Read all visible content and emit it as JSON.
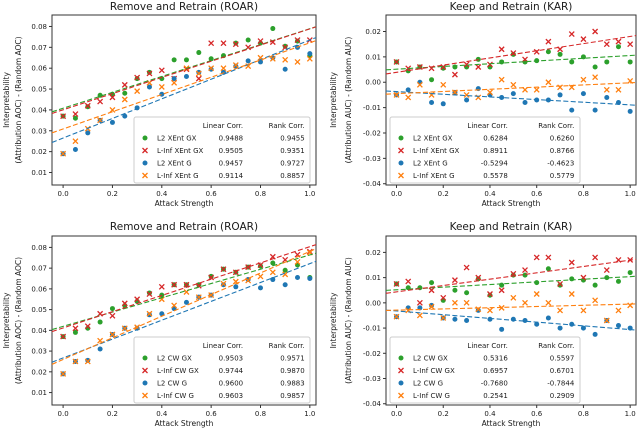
{
  "figure": {
    "background": "#ffffff",
    "text_color": "#1a1a1a",
    "frame_color": "#333333",
    "legend_border_color": "#cccccc"
  },
  "chart_data": [
    {
      "type": "scatter",
      "slug": "roar-xent",
      "grid": [
        0,
        0
      ],
      "title": "Remove and Retrain (ROAR)",
      "xlabel": "Attack Strength",
      "ylabel_outer": "Interpretability",
      "ylabel_inner": "(Attribution AOC) - (Random AOC)",
      "xlim": [
        -0.045,
        1.025
      ],
      "ylim": [
        0.004,
        0.0855
      ],
      "xticks": [
        0.0,
        0.2,
        0.4,
        0.6,
        0.8,
        1.0
      ],
      "xtick_labels": [
        "0.0",
        "0.2",
        "0.4",
        "0.6",
        "0.8",
        "1.0"
      ],
      "yticks": [
        0.01,
        0.02,
        0.03,
        0.04,
        0.05,
        0.06,
        0.07,
        0.08
      ],
      "ytick_labels": [
        "0.01",
        "0.02",
        "0.03",
        "0.04",
        "0.05",
        "0.06",
        "0.07",
        "0.08"
      ],
      "grid_lines": false,
      "legend_position": "lower right",
      "legend_headers": [
        "Linear Corr.",
        "Rank Corr."
      ],
      "x": [
        0.0,
        0.05,
        0.1,
        0.15,
        0.2,
        0.25,
        0.3,
        0.35,
        0.4,
        0.45,
        0.5,
        0.55,
        0.6,
        0.65,
        0.7,
        0.75,
        0.8,
        0.85,
        0.9,
        0.95,
        1.0
      ],
      "series": [
        {
          "name": "L2 XEnt GX",
          "marker": "circle",
          "color": "#2ca02c",
          "linear_corr": "0.9488",
          "rank_corr": "0.9455",
          "values": [
            0.037,
            0.036,
            0.0415,
            0.047,
            0.0475,
            0.048,
            0.055,
            0.058,
            0.055,
            0.064,
            0.064,
            0.0675,
            0.0645,
            0.066,
            0.072,
            0.0735,
            0.072,
            0.079,
            0.0705,
            0.073,
            0.066
          ]
        },
        {
          "name": "L-Inf XEnt GX",
          "marker": "x",
          "color": "#d62728",
          "linear_corr": "0.9505",
          "rank_corr": "0.9351",
          "values": [
            0.037,
            0.038,
            0.042,
            0.044,
            0.046,
            0.052,
            0.0555,
            0.0575,
            0.059,
            0.055,
            0.0595,
            0.055,
            0.072,
            0.072,
            0.0715,
            0.07,
            0.073,
            0.0725,
            0.07,
            0.0735,
            0.0735
          ]
        },
        {
          "name": "L2 XEnt G",
          "marker": "circle",
          "color": "#1f77b4",
          "linear_corr": "0.9457",
          "rank_corr": "0.9727",
          "values": [
            0.019,
            0.021,
            0.029,
            0.035,
            0.034,
            0.037,
            0.041,
            0.051,
            0.0475,
            0.055,
            0.056,
            0.058,
            0.0595,
            0.058,
            0.061,
            0.0635,
            0.063,
            0.065,
            0.0595,
            0.07,
            0.067
          ]
        },
        {
          "name": "L-Inf XEnt G",
          "marker": "x",
          "color": "#ff7f0e",
          "linear_corr": "0.9114",
          "rank_corr": "0.8857",
          "values": [
            0.019,
            0.025,
            0.031,
            0.035,
            0.04,
            0.045,
            0.049,
            0.053,
            0.051,
            0.053,
            0.06,
            0.0575,
            0.06,
            0.06,
            0.0615,
            0.061,
            0.065,
            0.0645,
            0.064,
            0.063,
            0.0645
          ]
        }
      ]
    },
    {
      "type": "scatter",
      "slug": "kar-xent",
      "grid": [
        0,
        1
      ],
      "title": "Keep and Retrain (KAR)",
      "xlabel": "Attack Strength",
      "ylabel_outer": "Interpretability",
      "ylabel_inner": "(Attribution AUC) - (Random AUC)",
      "xlim": [
        -0.045,
        1.025
      ],
      "ylim": [
        -0.0405,
        0.0265
      ],
      "xticks": [
        0.0,
        0.2,
        0.4,
        0.6,
        0.8,
        1.0
      ],
      "xtick_labels": [
        "0.0",
        "0.2",
        "0.4",
        "0.6",
        "0.8",
        "1.0"
      ],
      "yticks": [
        -0.04,
        -0.03,
        -0.02,
        -0.01,
        0.0,
        0.01,
        0.02
      ],
      "ytick_labels": [
        "-0.04",
        "-0.03",
        "-0.02",
        "-0.01",
        "0.00",
        "0.01",
        "0.02"
      ],
      "grid_lines": false,
      "legend_position": "lower left",
      "legend_headers": [
        "Linear Corr.",
        "Rank Corr."
      ],
      "x": [
        0.0,
        0.05,
        0.1,
        0.15,
        0.2,
        0.25,
        0.3,
        0.35,
        0.4,
        0.45,
        0.5,
        0.55,
        0.6,
        0.65,
        0.7,
        0.75,
        0.8,
        0.85,
        0.9,
        0.95,
        1.0
      ],
      "series": [
        {
          "name": "L2 XEnt GX",
          "marker": "circle",
          "color": "#2ca02c",
          "linear_corr": "0.6284",
          "rank_corr": "0.6260",
          "values": [
            0.008,
            0.0045,
            0.006,
            0.001,
            0.0055,
            0.006,
            0.006,
            0.009,
            0.006,
            0.008,
            0.011,
            0.008,
            0.0085,
            0.012,
            0.011,
            0.008,
            0.01,
            0.006,
            0.008,
            0.014,
            0.008
          ]
        },
        {
          "name": "L-Inf XEnt GX",
          "marker": "x",
          "color": "#d62728",
          "linear_corr": "0.8911",
          "rank_corr": "0.8766",
          "values": [
            0.008,
            0.0055,
            0.006,
            0.0055,
            0.006,
            0.003,
            0.007,
            0.006,
            0.007,
            0.013,
            0.0115,
            0.009,
            0.012,
            0.016,
            0.013,
            0.019,
            0.017,
            0.02,
            0.015,
            0.016,
            0.015
          ]
        },
        {
          "name": "L2 XEnt G",
          "marker": "circle",
          "color": "#1f77b4",
          "linear_corr": "-0.5294",
          "rank_corr": "-0.4623",
          "values": [
            -0.005,
            -0.003,
            0.0,
            -0.008,
            -0.0085,
            -0.004,
            -0.007,
            -0.0025,
            -0.005,
            -0.006,
            -0.0045,
            -0.008,
            -0.007,
            -0.007,
            -0.005,
            -0.011,
            -0.0045,
            -0.011,
            -0.006,
            -0.008,
            -0.0115
          ]
        },
        {
          "name": "L-Inf XEnt G",
          "marker": "x",
          "color": "#ff7f0e",
          "linear_corr": "0.5578",
          "rank_corr": "0.5779",
          "values": [
            -0.005,
            -0.006,
            -0.001,
            -0.005,
            -0.001,
            -0.004,
            -0.005,
            -0.006,
            -0.004,
            0.001,
            -0.001,
            -0.003,
            -0.003,
            0.0,
            -0.002,
            -0.002,
            0.001,
            0.002,
            -0.003,
            -0.003,
            0.0005
          ]
        }
      ]
    },
    {
      "type": "scatter",
      "slug": "roar-cw",
      "grid": [
        1,
        0
      ],
      "title": "Remove and Retrain (ROAR)",
      "xlabel": "Attack Strength",
      "ylabel_outer": "Interpretability",
      "ylabel_inner": "(Attribution AOC) - (Random AOC)",
      "xlim": [
        -0.045,
        1.025
      ],
      "ylim": [
        0.004,
        0.0855
      ],
      "xticks": [
        0.0,
        0.2,
        0.4,
        0.6,
        0.8,
        1.0
      ],
      "xtick_labels": [
        "0.0",
        "0.2",
        "0.4",
        "0.6",
        "0.8",
        "1.0"
      ],
      "yticks": [
        0.01,
        0.02,
        0.03,
        0.04,
        0.05,
        0.06,
        0.07,
        0.08
      ],
      "ytick_labels": [
        "0.01",
        "0.02",
        "0.03",
        "0.04",
        "0.05",
        "0.06",
        "0.07",
        "0.08"
      ],
      "grid_lines": false,
      "legend_position": "lower right",
      "legend_headers": [
        "Linear Corr.",
        "Rank Corr."
      ],
      "x": [
        0.0,
        0.05,
        0.1,
        0.15,
        0.2,
        0.25,
        0.3,
        0.35,
        0.4,
        0.45,
        0.5,
        0.55,
        0.6,
        0.65,
        0.7,
        0.75,
        0.8,
        0.85,
        0.9,
        0.95,
        1.0
      ],
      "series": [
        {
          "name": "L2 CW GX",
          "marker": "circle",
          "color": "#2ca02c",
          "linear_corr": "0.9503",
          "rank_corr": "0.9571",
          "values": [
            0.037,
            0.039,
            0.041,
            0.044,
            0.0505,
            0.052,
            0.054,
            0.058,
            0.057,
            0.062,
            0.062,
            0.062,
            0.066,
            0.0695,
            0.068,
            0.0705,
            0.071,
            0.0725,
            0.069,
            0.0715,
            0.0655
          ]
        },
        {
          "name": "L-Inf CW GX",
          "marker": "x",
          "color": "#d62728",
          "linear_corr": "0.9744",
          "rank_corr": "0.9870",
          "values": [
            0.037,
            0.041,
            0.042,
            0.048,
            0.047,
            0.053,
            0.055,
            0.0575,
            0.061,
            0.062,
            0.062,
            0.0615,
            0.0655,
            0.0695,
            0.068,
            0.0705,
            0.0715,
            0.0755,
            0.074,
            0.0765,
            0.078
          ]
        },
        {
          "name": "L2 CW G",
          "marker": "circle",
          "color": "#1f77b4",
          "linear_corr": "0.9600",
          "rank_corr": "0.9883",
          "values": [
            0.019,
            0.025,
            0.0255,
            0.031,
            0.038,
            0.041,
            0.041,
            0.0475,
            0.048,
            0.0505,
            0.0535,
            0.056,
            0.057,
            0.062,
            0.061,
            0.0645,
            0.0605,
            0.0645,
            0.062,
            0.0655,
            0.065
          ]
        },
        {
          "name": "L-Inf CW G",
          "marker": "x",
          "color": "#ff7f0e",
          "linear_corr": "0.9603",
          "rank_corr": "0.9857",
          "values": [
            0.019,
            0.025,
            0.025,
            0.035,
            0.038,
            0.041,
            0.0415,
            0.048,
            0.055,
            0.052,
            0.0585,
            0.056,
            0.057,
            0.0625,
            0.0635,
            0.064,
            0.066,
            0.068,
            0.067,
            0.073,
            0.0775
          ]
        }
      ]
    },
    {
      "type": "scatter",
      "slug": "kar-cw",
      "grid": [
        1,
        1
      ],
      "title": "Keep and Retrain (KAR)",
      "xlabel": "Attack Strength",
      "ylabel_outer": "Interpretability",
      "ylabel_inner": "(Attribution AUC) - (Random AUC)",
      "xlim": [
        -0.045,
        1.025
      ],
      "ylim": [
        -0.0405,
        0.0265
      ],
      "xticks": [
        0.0,
        0.2,
        0.4,
        0.6,
        0.8,
        1.0
      ],
      "xtick_labels": [
        "0.0",
        "0.2",
        "0.4",
        "0.6",
        "0.8",
        "1.0"
      ],
      "yticks": [
        -0.04,
        -0.03,
        -0.02,
        -0.01,
        0.0,
        0.01,
        0.02
      ],
      "ytick_labels": [
        "-0.04",
        "-0.03",
        "-0.02",
        "-0.01",
        "0.00",
        "0.01",
        "0.02"
      ],
      "grid_lines": false,
      "legend_position": "lower left",
      "legend_headers": [
        "Linear Corr.",
        "Rank Corr."
      ],
      "x": [
        0.0,
        0.05,
        0.1,
        0.15,
        0.2,
        0.25,
        0.3,
        0.35,
        0.4,
        0.45,
        0.5,
        0.55,
        0.6,
        0.65,
        0.7,
        0.75,
        0.8,
        0.85,
        0.9,
        0.95,
        1.0
      ],
      "series": [
        {
          "name": "L2 CW GX",
          "marker": "circle",
          "color": "#2ca02c",
          "linear_corr": "0.5316",
          "rank_corr": "0.5597",
          "values": [
            0.0075,
            0.006,
            0.006,
            0.008,
            0.001,
            0.005,
            0.004,
            0.0095,
            0.003,
            0.007,
            0.011,
            0.011,
            0.008,
            0.0135,
            0.007,
            0.0095,
            0.009,
            0.007,
            0.01,
            0.0085,
            0.012
          ]
        },
        {
          "name": "L-Inf CW GX",
          "marker": "x",
          "color": "#d62728",
          "linear_corr": "0.6957",
          "rank_corr": "0.6701",
          "values": [
            0.0075,
            0.0085,
            0.0,
            0.005,
            0.002,
            0.009,
            0.014,
            0.01,
            0.0035,
            0.005,
            0.0115,
            0.013,
            0.018,
            0.018,
            0.0075,
            0.016,
            0.01,
            0.018,
            0.013,
            0.017,
            0.017
          ]
        },
        {
          "name": "L2 CW G",
          "marker": "circle",
          "color": "#1f77b4",
          "linear_corr": "-0.7680",
          "rank_corr": "-0.7844",
          "values": [
            -0.0055,
            -0.002,
            -0.002,
            -0.001,
            -0.006,
            -0.0065,
            -0.007,
            -0.003,
            -0.0065,
            -0.0105,
            -0.0065,
            -0.007,
            -0.0085,
            -0.006,
            -0.01,
            -0.0085,
            -0.01,
            -0.0125,
            -0.007,
            -0.009,
            -0.01
          ]
        },
        {
          "name": "L-Inf CW G",
          "marker": "x",
          "color": "#ff7f0e",
          "linear_corr": "0.2541",
          "rank_corr": "0.2909",
          "values": [
            -0.0055,
            -0.003,
            -0.005,
            -0.0015,
            -0.006,
            0.0,
            0.0,
            -0.0025,
            -0.003,
            -0.002,
            0.002,
            0.0,
            0.0035,
            0.0,
            -0.003,
            0.0035,
            -0.003,
            0.001,
            -0.007,
            -0.003,
            -0.001
          ]
        }
      ]
    }
  ]
}
